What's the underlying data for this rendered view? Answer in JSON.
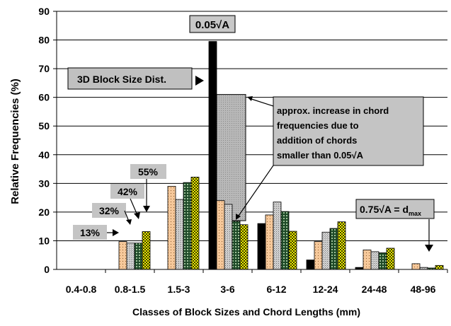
{
  "chart_data": {
    "type": "bar",
    "title": "",
    "xlabel": "Classes of Block Sizes and Chord Lengths (mm)",
    "ylabel": "Relative Frequencies (%)",
    "ylim": [
      0,
      90
    ],
    "yticks": [
      "0",
      "10",
      "20",
      "30",
      "40",
      "50",
      "60",
      "70",
      "80",
      "90"
    ],
    "grid": true,
    "categories": [
      "0.4-0.8",
      "0.8-1.5",
      "1.5-3",
      "3-6",
      "6-12",
      "12-24",
      "24-48",
      "48-96"
    ],
    "series": [
      {
        "name": "3D Block Size Dist.",
        "color": "#000000",
        "pattern": "solid",
        "values": [
          0,
          0,
          0,
          79.5,
          16,
          3.3,
          0.7,
          0
        ]
      },
      {
        "name": "13%",
        "color": "#f6c89a",
        "pattern": "dots",
        "values": [
          0,
          9.7,
          29,
          24,
          19,
          9.7,
          6.8,
          2
        ]
      },
      {
        "name": "32%",
        "color": "#c6c6c6",
        "pattern": "speckle",
        "values": [
          0,
          9.2,
          24.4,
          22.7,
          23.5,
          13,
          6.2,
          0.7
        ]
      },
      {
        "name": "42%",
        "color": "#2e5c3a",
        "pattern": "grid",
        "values": [
          0,
          9.2,
          30.3,
          16.8,
          20.2,
          14.3,
          5.8,
          0.5
        ]
      },
      {
        "name": "55%",
        "color": "#f2f200",
        "pattern": "check",
        "values": [
          0,
          13.2,
          32.2,
          15.6,
          13.3,
          16.6,
          7.4,
          1.4
        ]
      }
    ],
    "annotations": {
      "top_label": "0.05√A",
      "block_dist_label": "3D Block Size Dist.",
      "increase_note": [
        "approx. increase in chord",
        "frequencies due to",
        "addition of chords",
        "smaller than 0.05√A"
      ],
      "dmax_label": "0.75√A = d",
      "dmax_sub": "max",
      "pct_labels": [
        "55%",
        "42%",
        "32%",
        "13%"
      ],
      "shaded_region": {
        "category": "3-6",
        "from": 17,
        "to": 61
      }
    }
  }
}
